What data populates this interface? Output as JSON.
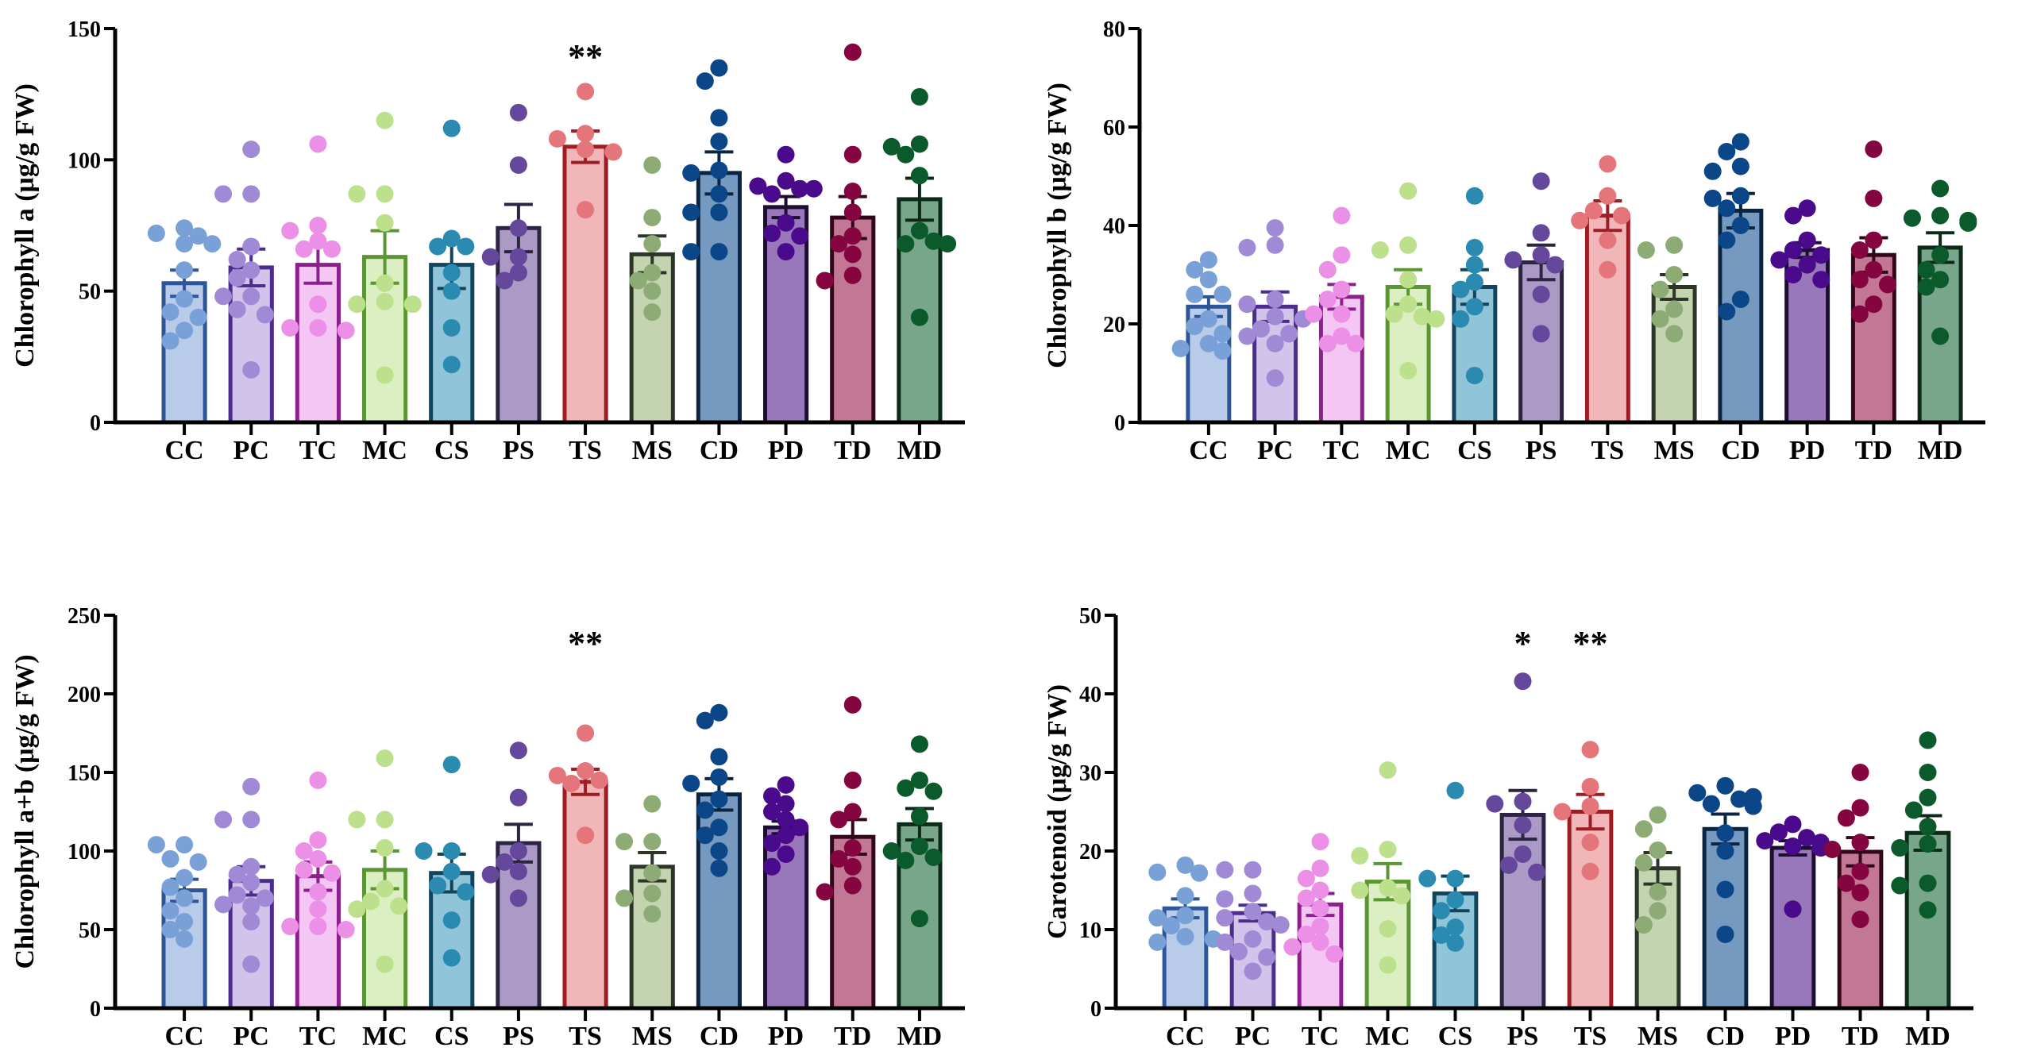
{
  "figure": {
    "groups": [
      "CC",
      "PC",
      "TC",
      "MC",
      "CS",
      "PS",
      "TS",
      "MS",
      "CD",
      "PD",
      "TD",
      "MD"
    ],
    "colors": {
      "CC": {
        "fill": "#b8cbe9",
        "stroke": "#2e5597",
        "dot": "#7aa0d8"
      },
      "PC": {
        "fill": "#d1c3ea",
        "stroke": "#4d2d8c",
        "dot": "#a08ad6"
      },
      "TC": {
        "fill": "#f3c6f3",
        "stroke": "#8e1f8e",
        "dot": "#eb90e6"
      },
      "MC": {
        "fill": "#dcefc2",
        "stroke": "#5a9632",
        "dot": "#bde08c"
      },
      "CS": {
        "fill": "#8fc4d9",
        "stroke": "#12445c",
        "dot": "#2a8ab0"
      },
      "PS": {
        "fill": "#ac9ac6",
        "stroke": "#2d2442",
        "dot": "#65489c"
      },
      "TS": {
        "fill": "#f0b6b8",
        "stroke": "#9e1c24",
        "dot": "#e4757a"
      },
      "MS": {
        "fill": "#c4d4b1",
        "stroke": "#2c3528",
        "dot": "#8dab74"
      },
      "CD": {
        "fill": "#7599bf",
        "stroke": "#0b2442",
        "dot": "#0a4688"
      },
      "PD": {
        "fill": "#9877bb",
        "stroke": "#1e0d33",
        "dot": "#4a0a8c"
      },
      "TD": {
        "fill": "#c27795",
        "stroke": "#33071a",
        "dot": "#850540"
      },
      "MD": {
        "fill": "#78a68a",
        "stroke": "#0b2a18",
        "dot": "#0b5a2c"
      }
    }
  },
  "chart_data": [
    {
      "type": "bar",
      "id": "chl-a",
      "title": "",
      "xlabel": "",
      "ylabel": "Chlorophyll a (μg/g FW)",
      "ylim": [
        0,
        150
      ],
      "yticks": [
        0,
        50,
        100,
        150
      ],
      "categories": [
        "CC",
        "PC",
        "TC",
        "MC",
        "CS",
        "PS",
        "TS",
        "MS",
        "CD",
        "PD",
        "TD",
        "MD"
      ],
      "values": [
        53,
        59,
        60,
        63,
        60,
        74,
        105,
        64,
        95,
        82,
        78,
        85
      ],
      "sem": [
        5,
        7,
        7,
        10,
        9,
        9,
        6,
        7,
        8,
        4,
        8,
        8
      ],
      "points": [
        [
          74,
          72,
          71,
          68,
          68,
          58,
          47,
          42,
          40,
          35,
          31
        ],
        [
          104,
          87,
          87,
          67,
          62,
          58,
          55,
          48,
          48,
          43,
          41,
          20
        ],
        [
          106,
          75,
          73,
          69,
          66,
          66,
          45,
          36,
          36,
          35
        ],
        [
          115,
          87,
          87,
          76,
          53,
          46,
          45,
          45,
          18
        ],
        [
          112,
          70,
          67,
          67,
          57,
          50,
          36,
          22
        ],
        [
          118,
          98,
          74,
          63,
          63,
          57,
          54
        ],
        [
          126,
          110,
          108,
          104,
          103,
          81
        ],
        [
          98,
          78,
          68,
          57,
          54,
          50,
          42
        ],
        [
          135,
          130,
          116,
          107,
          96,
          95,
          87,
          80,
          80,
          65,
          65
        ],
        [
          102,
          92,
          90,
          89,
          89,
          87,
          76,
          72,
          71,
          65
        ],
        [
          141,
          102,
          88,
          80,
          71,
          68,
          64,
          56,
          54
        ],
        [
          124,
          106,
          105,
          102,
          94,
          73,
          68,
          69,
          68,
          40
        ]
      ],
      "annotations": [
        {
          "category": "TS",
          "text": "**"
        }
      ]
    },
    {
      "type": "bar",
      "id": "chl-b",
      "title": "",
      "xlabel": "",
      "ylabel": "Chlorophyll b (μg/g FW)",
      "ylim": [
        0,
        80
      ],
      "yticks": [
        0,
        20,
        40,
        60,
        80
      ],
      "categories": [
        "CC",
        "PC",
        "TC",
        "MC",
        "CS",
        "PS",
        "TS",
        "MS",
        "CD",
        "PD",
        "TD",
        "MD"
      ],
      "values": [
        23.5,
        23.5,
        25.5,
        27.5,
        27.5,
        32.5,
        42,
        27.5,
        43,
        35,
        34,
        35.5
      ],
      "sem": [
        2,
        3,
        2.5,
        3.5,
        3.5,
        3.5,
        3,
        2.5,
        3.5,
        1.5,
        3.5,
        3
      ],
      "points": [
        [
          33,
          31,
          29,
          26,
          26,
          21,
          19.5,
          18,
          16,
          15,
          14.5
        ],
        [
          39.5,
          36,
          35.5,
          25,
          24,
          21.5,
          21,
          19,
          18,
          17.5,
          16,
          9
        ],
        [
          42,
          34,
          31,
          27,
          25,
          22,
          22,
          17.5,
          16,
          16
        ],
        [
          47,
          36,
          35,
          29,
          24,
          22,
          21.5,
          21,
          10.5
        ],
        [
          46,
          35.5,
          32,
          28.5,
          27,
          23.5,
          21,
          9.5
        ],
        [
          49,
          38.5,
          34,
          33,
          32,
          26,
          18
        ],
        [
          52.5,
          46,
          43,
          42,
          41,
          37,
          31
        ],
        [
          36,
          35,
          30,
          27,
          23,
          21,
          18
        ],
        [
          57,
          55,
          52,
          51,
          46,
          45.5,
          43.5,
          40,
          37,
          25,
          22.5
        ],
        [
          43.5,
          42,
          37,
          35,
          34,
          33,
          32,
          30,
          29
        ],
        [
          55.5,
          45.5,
          37,
          35,
          31,
          29,
          28,
          24,
          22
        ],
        [
          47.5,
          42,
          41.5,
          41,
          40.5,
          34,
          31,
          29,
          27.5,
          17.5
        ]
      ],
      "annotations": []
    },
    {
      "type": "bar",
      "id": "chl-ab",
      "title": "",
      "xlabel": "",
      "ylabel": "Chlorophyll a+b (μg/g FW)",
      "ylim": [
        0,
        250
      ],
      "yticks": [
        0,
        50,
        100,
        150,
        200,
        250
      ],
      "categories": [
        "CC",
        "PC",
        "TC",
        "MC",
        "CS",
        "PS",
        "TS",
        "MS",
        "CD",
        "PD",
        "TD",
        "MD"
      ],
      "values": [
        75,
        81,
        84,
        88,
        86,
        105,
        144,
        90,
        136,
        115,
        109,
        117
      ],
      "sem": [
        7,
        9,
        9,
        12,
        12,
        12,
        8,
        9,
        10,
        4,
        11,
        10
      ],
      "points": [
        [
          104,
          104,
          95,
          93,
          83,
          77,
          70,
          62,
          55,
          50,
          44
        ],
        [
          141,
          120,
          120,
          90,
          85,
          80,
          72,
          70,
          66,
          65,
          55,
          28
        ],
        [
          145,
          107,
          100,
          95,
          88,
          86,
          74,
          63,
          52,
          52,
          50
        ],
        [
          159,
          120,
          120,
          102,
          76,
          68,
          65,
          63,
          28
        ],
        [
          155,
          100,
          100,
          87,
          78,
          74,
          56,
          32
        ],
        [
          164,
          134,
          100,
          93,
          87,
          85,
          70
        ],
        [
          175,
          151,
          148,
          145,
          143,
          110
        ],
        [
          130,
          106,
          106,
          86,
          73,
          70,
          60
        ],
        [
          188,
          183,
          160,
          147,
          143,
          133,
          126,
          115,
          110,
          100,
          89
        ],
        [
          142,
          135,
          130,
          125,
          120,
          115,
          110,
          105,
          98,
          90
        ],
        [
          193,
          145,
          125,
          120,
          102,
          95,
          90,
          78,
          74
        ],
        [
          168,
          145,
          140,
          138,
          122,
          103,
          100,
          96,
          94,
          57
        ]
      ],
      "annotations": [
        {
          "category": "TS",
          "text": "**"
        }
      ]
    },
    {
      "type": "bar",
      "id": "carotenoid",
      "title": "",
      "xlabel": "",
      "ylabel": "Carotenoid (μg/g FW)",
      "ylim": [
        0,
        50
      ],
      "yticks": [
        0,
        10,
        20,
        30,
        40,
        50
      ],
      "categories": [
        "CC",
        "PC",
        "TC",
        "MC",
        "CS",
        "PS",
        "TS",
        "MS",
        "CD",
        "PD",
        "TD",
        "MD"
      ],
      "values": [
        12.7,
        12.1,
        13.2,
        16.1,
        14.6,
        24.6,
        25.0,
        17.8,
        22.8,
        20.4,
        19.9,
        22.3
      ],
      "sem": [
        1.2,
        1.0,
        1.4,
        2.3,
        2.2,
        3.1,
        2.2,
        2.0,
        1.9,
        0.9,
        1.8,
        2.2
      ],
      "points": [
        [
          18.2,
          17.3,
          17.2,
          14.3,
          11.8,
          11.5,
          10.5,
          9.1,
          8.4,
          8.8
        ],
        [
          17.6,
          17.6,
          14.6,
          13.9,
          12.3,
          11.5,
          11.0,
          10.6,
          8.8,
          8.4,
          7.2,
          6.5,
          4.7
        ],
        [
          21.2,
          17.8,
          16.5,
          15.0,
          14.0,
          12.7,
          10.4,
          9.4,
          8.4,
          7.8,
          6.9
        ],
        [
          30.3,
          20.2,
          19.4,
          15.3,
          15.0,
          14.3,
          10.1,
          5.5
        ],
        [
          27.7,
          16.5,
          16.5,
          13.8,
          12.4,
          10.3,
          9.3,
          8.3
        ],
        [
          41.6,
          26.3,
          26.0,
          23.3,
          19.6,
          18.2,
          17.3
        ],
        [
          32.9,
          28.2,
          25.7,
          25.0,
          21.1,
          17.4
        ],
        [
          24.6,
          22.8,
          20.1,
          18.5,
          14.8,
          12.4,
          10.6
        ],
        [
          28.3,
          27.4,
          26.6,
          26.0,
          25.7,
          26.9,
          22.3,
          20.0,
          15.1,
          9.4
        ],
        [
          23.4,
          22.4,
          21.7,
          21.3,
          21.1,
          20.8,
          20.6,
          20.4,
          12.6
        ],
        [
          30.0,
          25.5,
          24.2,
          21.1,
          20.2,
          17.4,
          15.9,
          14.7,
          11.3
        ],
        [
          34.1,
          30.0,
          26.8,
          25.2,
          23.1,
          20.9,
          20.4,
          15.9,
          15.6,
          12.5
        ]
      ],
      "annotations": [
        {
          "category": "PS",
          "text": "*"
        },
        {
          "category": "TS",
          "text": "**"
        }
      ]
    }
  ]
}
